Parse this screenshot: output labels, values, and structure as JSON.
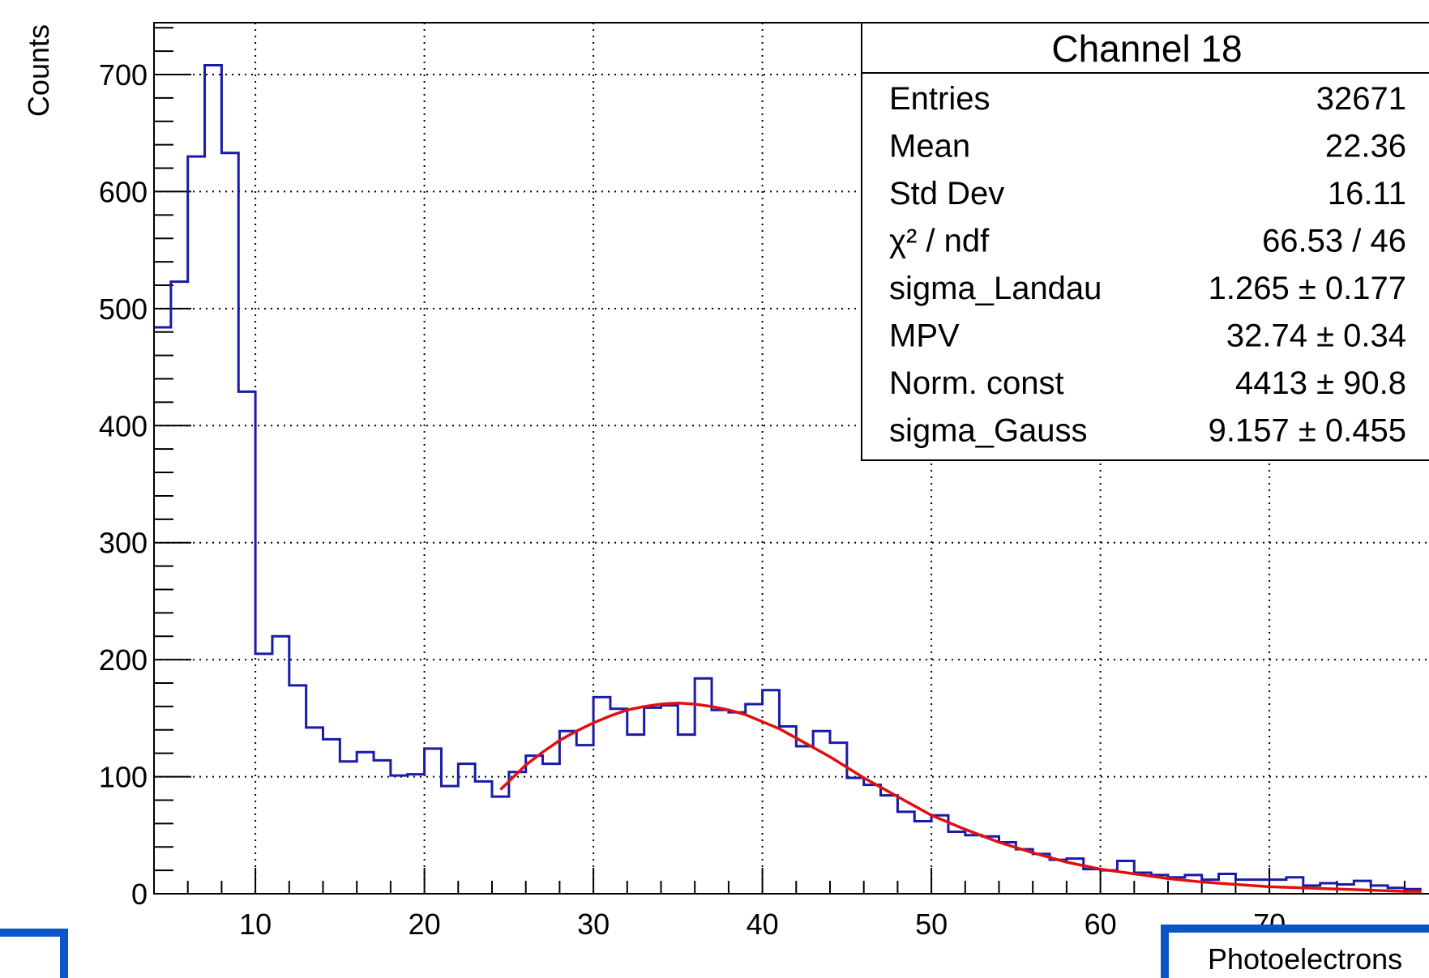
{
  "chart_data": {
    "type": "bar",
    "histtype": "step",
    "title": "",
    "xlabel": "Photoelectrons",
    "ylabel": "Counts",
    "xlim": [
      4,
      79
    ],
    "ylim": [
      0,
      745
    ],
    "grid": true,
    "x_ticks": [
      10,
      20,
      30,
      40,
      50,
      60,
      70
    ],
    "x_tick_labels": [
      "10",
      "20",
      "30",
      "40",
      "50",
      "60",
      "70"
    ],
    "y_ticks": [
      0,
      100,
      200,
      300,
      400,
      500,
      600,
      700
    ],
    "y_tick_labels": [
      "0",
      "100",
      "200",
      "300",
      "400",
      "500",
      "600",
      "700"
    ],
    "bin_width": 1,
    "bin_start": 4,
    "series": [
      {
        "values": [
          484,
          523,
          630,
          708,
          633,
          429,
          205,
          220,
          178,
          142,
          132,
          113,
          121,
          114,
          101,
          102,
          124,
          92,
          111,
          96,
          83,
          104,
          118,
          111,
          139,
          127,
          168,
          158,
          136,
          159,
          161,
          136,
          184,
          157,
          155,
          162,
          174,
          143,
          126,
          139,
          129,
          99,
          93,
          84,
          70,
          62,
          67,
          53,
          50,
          49,
          44,
          38,
          34,
          29,
          30,
          21,
          20,
          28,
          18,
          16,
          14,
          16,
          12,
          17,
          12,
          12,
          12,
          14,
          7,
          9,
          8,
          11,
          7,
          5,
          4
        ]
      }
    ],
    "fit": {
      "name": "",
      "color": "#e01010",
      "x": [
        24.5,
        26,
        27,
        28,
        29,
        30,
        31,
        32,
        33,
        34,
        35,
        36,
        37,
        38,
        39,
        40,
        41,
        42,
        43,
        44,
        45,
        46,
        47,
        48,
        49,
        50,
        52,
        54,
        56,
        58,
        60,
        62,
        64,
        66,
        68,
        70,
        72,
        74,
        76,
        78,
        79
      ],
      "y": [
        89,
        110,
        121,
        131,
        139,
        146,
        152,
        157,
        160,
        162,
        163,
        162,
        160,
        157,
        153,
        147,
        141,
        133,
        125,
        117,
        108,
        99,
        91,
        83,
        75,
        67,
        55,
        44,
        35,
        27,
        21,
        17,
        13,
        10,
        8,
        6,
        5,
        4,
        3,
        2,
        2
      ]
    },
    "series_color": "#1a1aa8",
    "stats_box": {
      "title": "Channel 18",
      "rows": [
        {
          "label": "Entries",
          "value": "32671"
        },
        {
          "label": "Mean",
          "value": "22.36"
        },
        {
          "label": "Std Dev",
          "value": "16.11"
        },
        {
          "label": "χ² / ndf",
          "value": "66.53 / 46"
        },
        {
          "label": "sigma_Landau",
          "value": "1.265 ± 0.177"
        },
        {
          "label": "MPV",
          "value": "32.74 ± 0.34"
        },
        {
          "label": "Norm. const",
          "value": "4413 ± 90.8"
        },
        {
          "label": "sigma_Gauss",
          "value": "9.157 ± 0.455"
        }
      ]
    }
  }
}
